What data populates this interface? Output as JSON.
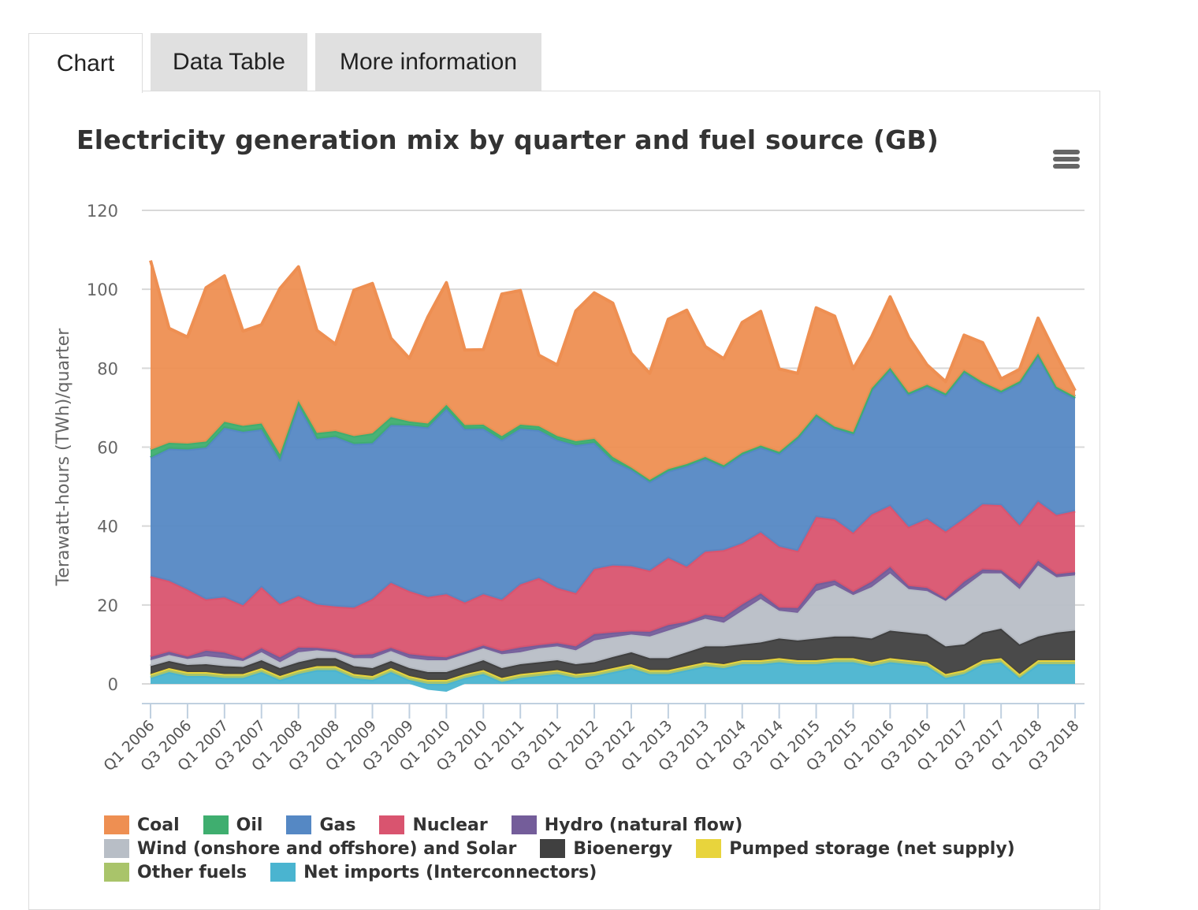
{
  "tabs": [
    {
      "label": "Chart",
      "active": true
    },
    {
      "label": "Data Table",
      "active": false
    },
    {
      "label": "More information",
      "active": false
    }
  ],
  "menu_icon": "hamburger-menu-icon",
  "chart_data": {
    "type": "area",
    "stacked": true,
    "title": "Electricity generation mix by quarter and fuel source (GB)",
    "xlabel": "",
    "ylabel": "Terawatt-hours (TWh)/quarter",
    "ylim": [
      0,
      120
    ],
    "yticks": [
      0,
      20,
      40,
      60,
      80,
      100,
      120
    ],
    "grid": true,
    "legend_position": "bottom",
    "x": [
      "Q1 2006",
      "Q2 2006",
      "Q3 2006",
      "Q4 2006",
      "Q1 2007",
      "Q2 2007",
      "Q3 2007",
      "Q4 2007",
      "Q1 2008",
      "Q2 2008",
      "Q3 2008",
      "Q4 2008",
      "Q1 2009",
      "Q2 2009",
      "Q3 2009",
      "Q4 2009",
      "Q1 2010",
      "Q2 2010",
      "Q3 2010",
      "Q4 2010",
      "Q1 2011",
      "Q2 2011",
      "Q3 2011",
      "Q4 2011",
      "Q1 2012",
      "Q2 2012",
      "Q3 2012",
      "Q4 2012",
      "Q1 2013",
      "Q2 2013",
      "Q3 2013",
      "Q4 2013",
      "Q1 2014",
      "Q2 2014",
      "Q3 2014",
      "Q4 2014",
      "Q1 2015",
      "Q2 2015",
      "Q3 2015",
      "Q4 2015",
      "Q1 2016",
      "Q2 2016",
      "Q3 2016",
      "Q4 2016",
      "Q1 2017",
      "Q2 2017",
      "Q3 2017",
      "Q4 2017",
      "Q1 2018",
      "Q2 2018",
      "Q3 2018"
    ],
    "xtick_labels": [
      "Q1 2006",
      "Q3 2006",
      "Q1 2007",
      "Q3 2007",
      "Q1 2008",
      "Q3 2008",
      "Q1 2009",
      "Q3 2009",
      "Q1 2010",
      "Q3 2010",
      "Q1 2011",
      "Q3 2011",
      "Q1 2012",
      "Q3 2012",
      "Q1 2013",
      "Q3 2013",
      "Q1 2014",
      "Q3 2014",
      "Q1 2015",
      "Q3 2015",
      "Q1 2016",
      "Q3 2016",
      "Q1 2017",
      "Q3 2017",
      "Q1 2018",
      "Q3 2018"
    ],
    "stack_order_bottom_to_top": [
      "Net imports (Interconnectors)",
      "Other fuels",
      "Pumped storage (net supply)",
      "Bioenergy",
      "Wind (onshore and offshore) and Solar",
      "Hydro (natural flow)",
      "Nuclear",
      "Gas",
      "Oil",
      "Coal"
    ],
    "series": [
      {
        "name": "Coal",
        "color": "#ee8f52",
        "values": [
          48,
          29,
          27,
          39,
          37,
          24,
          25,
          42,
          34,
          26,
          22,
          37,
          38,
          20,
          16,
          27,
          31,
          19,
          19,
          36,
          34,
          18,
          18,
          33,
          37,
          39,
          29,
          27,
          38,
          39,
          28,
          27,
          33,
          34,
          21,
          16,
          27,
          28,
          16,
          13,
          18,
          14,
          5,
          3,
          9,
          10,
          3,
          3,
          9,
          8,
          1.5
        ]
      },
      {
        "name": "Oil",
        "color": "#3fae6f",
        "values": [
          2,
          1.5,
          1.5,
          1.5,
          1.5,
          1.5,
          1.5,
          1.5,
          1,
          1.5,
          1.5,
          2,
          2.5,
          2,
          1,
          1,
          1,
          1,
          1,
          1,
          1,
          1,
          1,
          1,
          1,
          1,
          0.5,
          0.5,
          0.5,
          0.5,
          0.5,
          0.5,
          0.5,
          0.5,
          0.5,
          0.5,
          0.5,
          0.5,
          0.5,
          0.5,
          0.5,
          0.5,
          0.5,
          0.5,
          0.5,
          0.5,
          0.5,
          0.5,
          0.5,
          0.5,
          0.5
        ]
      },
      {
        "name": "Gas",
        "color": "#5588c4",
        "values": [
          30,
          33.5,
          35.5,
          38.5,
          43,
          44,
          40,
          36.5,
          48.5,
          42,
          43,
          41.5,
          39.5,
          40,
          42,
          43,
          47,
          44,
          42,
          40.5,
          39.5,
          37.5,
          37.5,
          37.5,
          32,
          26.5,
          24.5,
          22.5,
          22,
          25.5,
          23.5,
          21,
          22.5,
          21.5,
          23.5,
          28.5,
          25.5,
          23,
          25,
          31.5,
          34.5,
          33.5,
          33.5,
          34.5,
          37,
          30.5,
          28.5,
          36,
          37,
          32,
          28.5
        ]
      },
      {
        "name": "Nuclear",
        "color": "#d9546f",
        "values": [
          20.5,
          18,
          17,
          13,
          14,
          13.5,
          15.5,
          13.5,
          13,
          11,
          11,
          12,
          14,
          16.5,
          16,
          15,
          16,
          12.5,
          13,
          13,
          16,
          17,
          14,
          13.5,
          16.5,
          17,
          16.5,
          15.5,
          17,
          14,
          16,
          17,
          15.5,
          15.5,
          15.5,
          14.5,
          17,
          15.5,
          15,
          17,
          15.5,
          15,
          17.5,
          17,
          16,
          16.5,
          16.5,
          15,
          15,
          15,
          15.5
        ]
      },
      {
        "name": "Hydro (natural flow)",
        "color": "#745d9a",
        "values": [
          0.8,
          0.8,
          0.6,
          1.4,
          1.4,
          0.6,
          1,
          1.2,
          1.2,
          0.6,
          0.6,
          0.8,
          1,
          0.8,
          1,
          1,
          0.7,
          0.6,
          0.7,
          0.8,
          1.2,
          0.8,
          0.8,
          1,
          1.6,
          1.2,
          0.8,
          1.2,
          1.4,
          0.7,
          1,
          1.4,
          1.6,
          1.4,
          0.8,
          1.2,
          1.8,
          1.2,
          0.8,
          1.4,
          1.6,
          0.8,
          0.8,
          0.6,
          1.4,
          1,
          0.8,
          1.2,
          1.2,
          0.8,
          0.8
        ]
      },
      {
        "name": "Wind (onshore and offshore) and Solar",
        "color": "#b8bec6",
        "values": [
          1.5,
          1.5,
          1.5,
          2,
          2,
          1.5,
          2,
          1.5,
          2.5,
          2,
          1.5,
          2,
          2.5,
          2.5,
          2.5,
          3,
          3,
          3,
          3,
          3.5,
          3,
          3.5,
          3.5,
          3.5,
          5.5,
          5,
          4.5,
          5.5,
          7,
          7,
          7,
          6,
          8.5,
          11,
          7,
          7,
          12,
          13,
          10.5,
          13,
          14.5,
          11,
          11,
          11.5,
          14.5,
          15,
          14,
          14,
          18,
          14,
          14
        ]
      },
      {
        "name": "Bioenergy",
        "color": "#404040",
        "values": [
          2,
          1.8,
          1.8,
          2,
          2,
          1.8,
          2,
          2,
          2,
          2,
          2,
          2,
          2,
          1.8,
          2,
          2,
          2,
          2,
          2.5,
          2.5,
          2.5,
          2.5,
          2.5,
          2.5,
          2.5,
          2.8,
          3,
          3,
          3,
          3.5,
          4,
          4.5,
          4,
          4.5,
          5,
          5,
          5.5,
          5.5,
          5.5,
          6,
          7,
          7,
          7,
          7,
          6.5,
          7,
          7.5,
          7.5,
          6,
          7,
          7.5
        ]
      },
      {
        "name": "Pumped storage (net supply)",
        "color": "#e8d43c",
        "values": [
          0.3,
          0.3,
          0.3,
          0.3,
          0.3,
          0.3,
          0.3,
          0.3,
          0.3,
          0.3,
          0.3,
          0.3,
          0.3,
          0.3,
          0.3,
          0.3,
          0.3,
          0.3,
          0.3,
          0.3,
          0.3,
          0.3,
          0.3,
          0.3,
          0.3,
          0.3,
          0.3,
          0.3,
          0.3,
          0.3,
          0.3,
          0.3,
          0.3,
          0.3,
          0.3,
          0.3,
          0.3,
          0.3,
          0.3,
          0.3,
          0.3,
          0.3,
          0.3,
          0.3,
          0.3,
          0.3,
          0.3,
          0.3,
          0.3,
          0.3,
          0.3
        ]
      },
      {
        "name": "Other fuels",
        "color": "#a9c46a",
        "values": [
          0.7,
          0.7,
          0.7,
          0.7,
          0.7,
          0.7,
          0.7,
          0.7,
          0.7,
          0.7,
          0.7,
          0.7,
          0.7,
          0.7,
          0.7,
          0.7,
          0.7,
          0.7,
          0.7,
          0.7,
          0.7,
          0.7,
          0.7,
          0.7,
          0.7,
          0.7,
          0.7,
          0.7,
          0.7,
          0.7,
          0.7,
          0.7,
          0.7,
          0.7,
          0.7,
          0.7,
          0.7,
          0.7,
          0.7,
          0.7,
          0.7,
          0.7,
          0.7,
          0.7,
          0.7,
          0.7,
          0.7,
          0.7,
          0.7,
          0.7,
          0.7
        ]
      },
      {
        "name": "Net imports (Interconnectors)",
        "color": "#4ab4d0",
        "values": [
          1.5,
          3,
          2,
          2,
          1.5,
          1.5,
          3,
          1,
          2.5,
          3.5,
          3.5,
          1.5,
          1,
          3,
          1,
          -1.5,
          -2,
          1.5,
          2.5,
          0.5,
          1.5,
          2,
          2.5,
          1.5,
          2,
          3,
          4,
          2.5,
          2.5,
          3.5,
          4.5,
          4,
          5,
          5,
          5.5,
          5,
          5,
          5.5,
          5.5,
          4.5,
          5.5,
          5,
          4.5,
          1.5,
          2.5,
          5,
          5.5,
          1.5,
          5,
          5,
          5
        ]
      }
    ]
  }
}
